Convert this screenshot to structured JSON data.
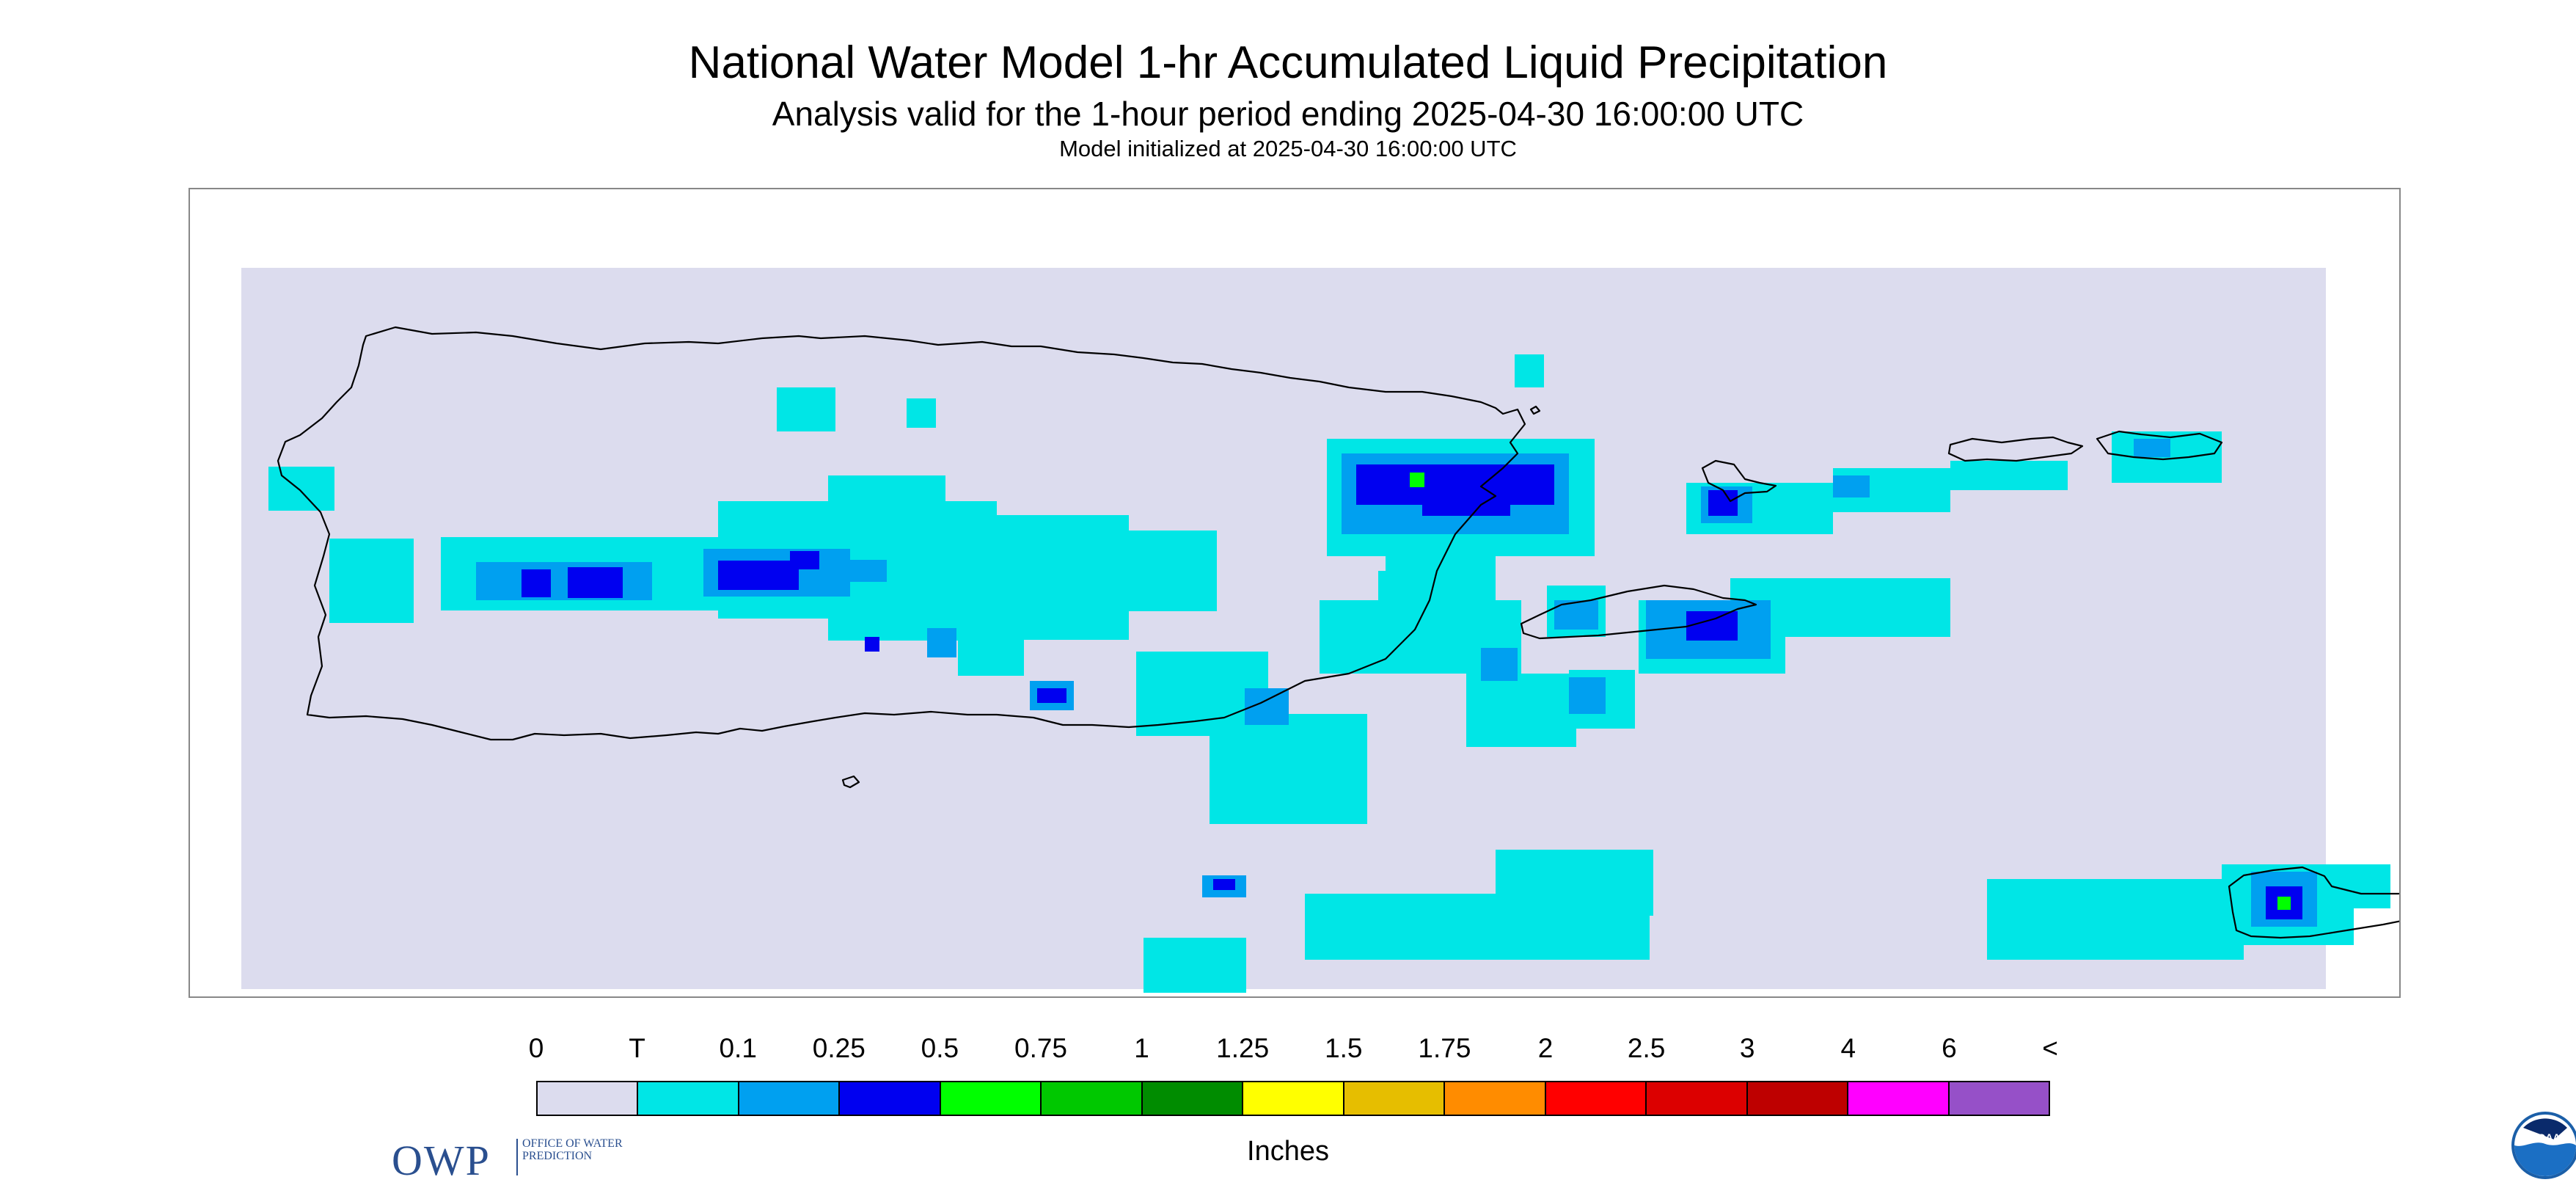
{
  "header": {
    "title": "National Water Model 1-hr Accumulated Liquid Precipitation",
    "subtitle": "Analysis valid for the 1-hour period ending 2025-04-30 16:00:00 UTC",
    "init_line": "Model initialized at 2025-04-30 16:00:00 UTC"
  },
  "map": {
    "region_features": [
      "Puerto Rico",
      "Vieques",
      "Culebra",
      "St. Thomas",
      "St. John",
      "St. Croix"
    ],
    "background_color": "#dcdcee",
    "coastline_color": "#000000"
  },
  "logos": {
    "owp_abbr": "OWP",
    "owp_full": "OFFICE OF WATER PREDICTION",
    "noaa": "NOAA"
  },
  "legend": {
    "units": "Inches",
    "labels": [
      "0",
      "T",
      "0.1",
      "0.25",
      "0.5",
      "0.75",
      "1",
      "1.25",
      "1.5",
      "1.75",
      "2",
      "2.5",
      "3",
      "4",
      "6",
      "<"
    ],
    "colors": [
      "#dcdcee",
      "#00e6e6",
      "#00a0f0",
      "#0000f0",
      "#00ff00",
      "#00c800",
      "#008c00",
      "#ffff00",
      "#e6be00",
      "#ff8c00",
      "#ff0000",
      "#dc0000",
      "#be0000",
      "#ff00ff",
      "#9650c8"
    ]
  }
}
